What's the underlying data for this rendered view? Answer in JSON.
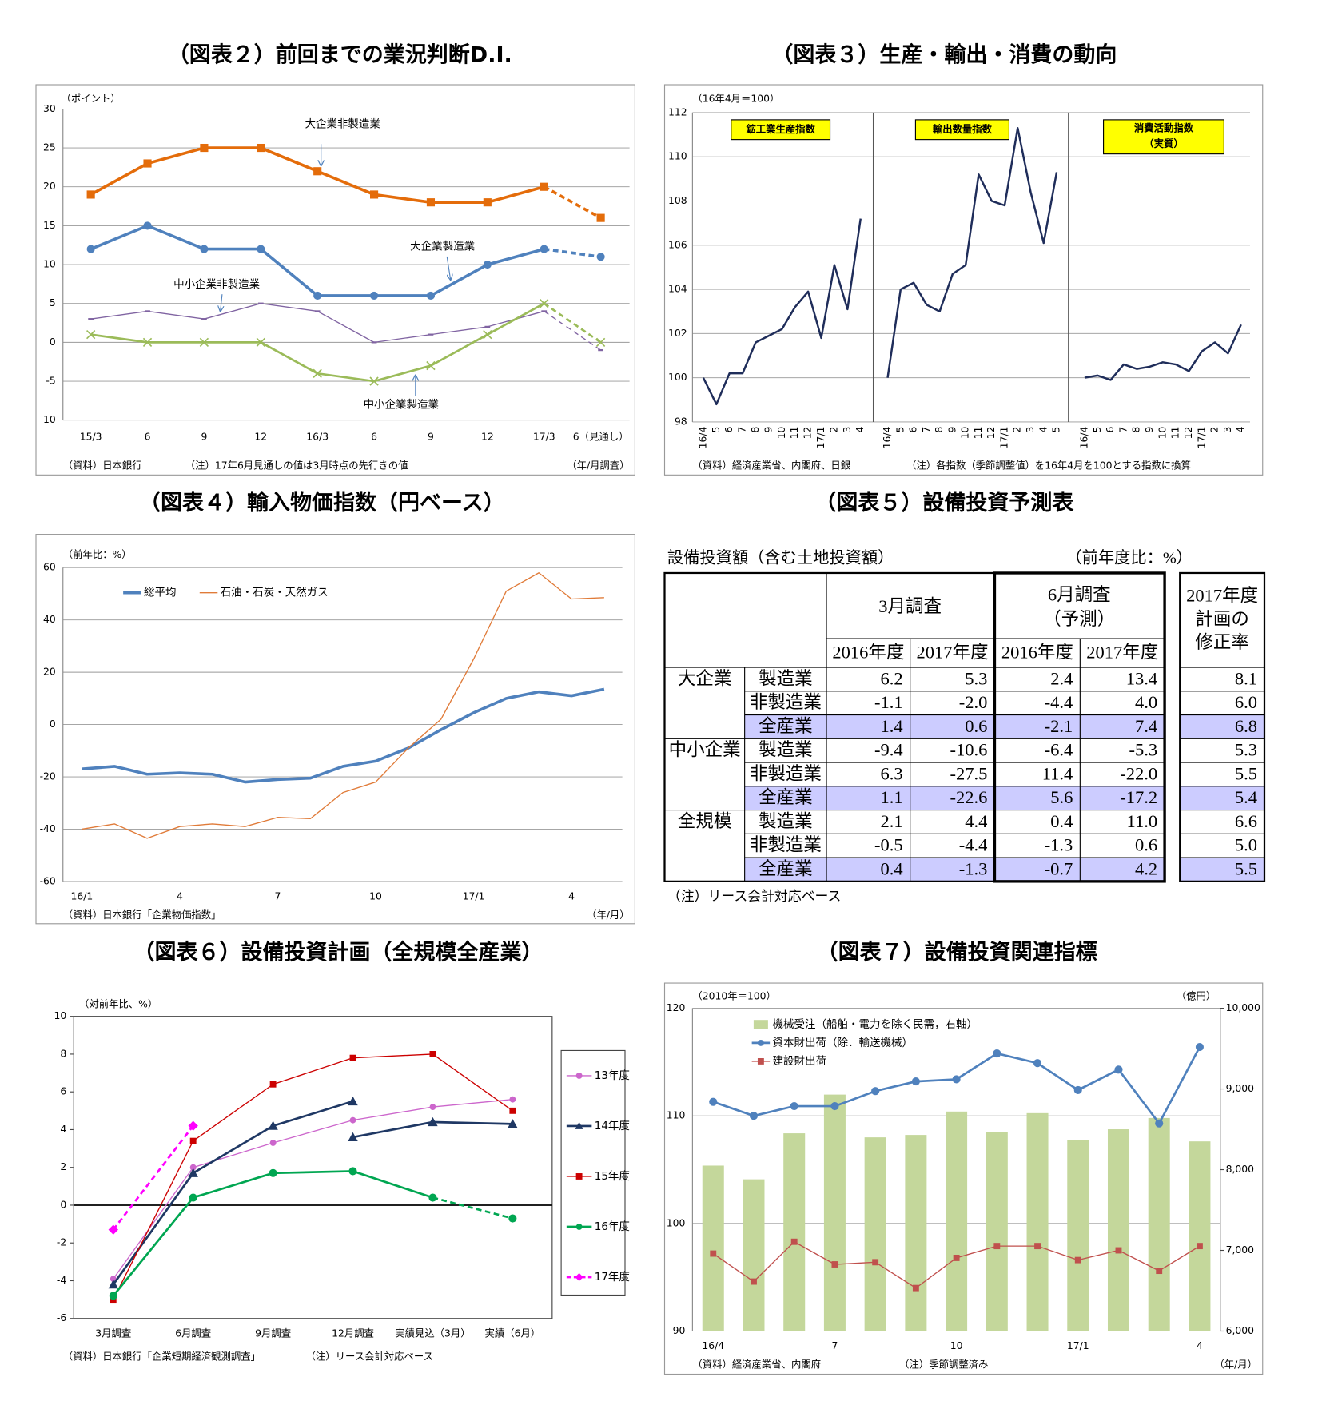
{
  "chart_data": [
    {
      "type": "line",
      "title": "（図表２）前回までの業況判断D.I.",
      "y_label": "（ポイント）",
      "x_label": "（年/月調査）",
      "source": "（資料）日本銀行",
      "note": "（注）17年6月見通しの値は3月時点の先行きの値",
      "categories": [
        "15/3",
        "6",
        "9",
        "12",
        "16/3",
        "6",
        "9",
        "12",
        "17/3",
        "6（見通し）"
      ],
      "ylim": [
        -10,
        30
      ],
      "yticks": [
        -10,
        -5,
        0,
        5,
        10,
        15,
        20,
        25,
        30
      ],
      "grid": true,
      "series": [
        {
          "name": "大企業非製造業",
          "color": "#E46C0A",
          "marker": "square",
          "style": "thick",
          "dashed_last_segment": true,
          "values": [
            19,
            23,
            25,
            25,
            22,
            19,
            18,
            18,
            20,
            16
          ]
        },
        {
          "name": "大企業製造業",
          "color": "#4F81BD",
          "marker": "circle",
          "style": "thick",
          "dashed_last_segment": true,
          "values": [
            12,
            15,
            12,
            12,
            6,
            6,
            6,
            10,
            12,
            11
          ]
        },
        {
          "name": "中小企業非製造業",
          "color": "#8064A2",
          "marker": "dash",
          "style": "thin",
          "dashed_last_segment": true,
          "values": [
            3,
            4,
            3,
            5,
            4,
            0,
            1,
            2,
            4,
            -1
          ]
        },
        {
          "name": "中小企業製造業",
          "color": "#9BBB59",
          "marker": "x",
          "style": "medium",
          "dashed_last_segment": true,
          "values": [
            1,
            0,
            0,
            0,
            -4,
            -5,
            -3,
            1,
            5,
            0
          ]
        }
      ]
    },
    {
      "type": "panel-line",
      "title": "（図表３）生産・輸出・消費の動向",
      "y_label": "（16年4月＝100）",
      "source": "（資料）経済産業省、内閣府、日銀",
      "note": "（注）各指数（季節調整値）を16年4月を100とする指数に換算",
      "ylim": [
        98,
        112
      ],
      "yticks": [
        98,
        100,
        102,
        104,
        106,
        108,
        110,
        112
      ],
      "grid": true,
      "color": "#1F2D5A",
      "label_color": "#FFFF00",
      "panels": [
        {
          "label": "鉱工業生産指数",
          "categories": [
            "16/4",
            "5",
            "6",
            "7",
            "8",
            "9",
            "10",
            "11",
            "12",
            "17/1",
            "2",
            "3",
            "4"
          ],
          "values": [
            100,
            98.8,
            100.2,
            100.2,
            101.6,
            101.9,
            102.2,
            103.2,
            103.9,
            101.8,
            105.1,
            103.1,
            107.2
          ]
        },
        {
          "label": "輸出数量指数",
          "categories": [
            "16/4",
            "5",
            "6",
            "7",
            "8",
            "9",
            "10",
            "11",
            "12",
            "17/1",
            "2",
            "3",
            "4",
            "5"
          ],
          "values": [
            100,
            104,
            104.3,
            103.3,
            103,
            104.7,
            105.1,
            109.2,
            108,
            107.8,
            111.3,
            108.4,
            106.1,
            109.3
          ]
        },
        {
          "label": [
            "消費活動指数",
            "（実質）"
          ],
          "categories": [
            "16/4",
            "5",
            "6",
            "7",
            "8",
            "9",
            "10",
            "11",
            "12",
            "17/1",
            "2",
            "3",
            "4"
          ],
          "values": [
            100,
            100.1,
            99.9,
            100.6,
            100.4,
            100.5,
            100.7,
            100.6,
            100.3,
            101.2,
            101.6,
            101.1,
            102.4
          ]
        }
      ]
    },
    {
      "type": "line",
      "title": "（図表４）輸入物価指数（円ベース）",
      "y_label": "（前年比：%）",
      "x_label": "（年/月）",
      "source": "（資料）日本銀行「企業物価指数」",
      "legend": "top-left",
      "categories": [
        "16/1",
        null,
        null,
        "4",
        null,
        null,
        "7",
        null,
        null,
        "10",
        null,
        null,
        "17/1",
        null,
        null,
        "4",
        null
      ],
      "ylim": [
        -60,
        60
      ],
      "yticks": [
        -60,
        -40,
        -20,
        0,
        20,
        40,
        60
      ],
      "grid": true,
      "series": [
        {
          "name": "総平均",
          "color": "#4F81BD",
          "style": "thick",
          "values": [
            -17,
            -16,
            -19,
            -18.5,
            -19,
            -22,
            -21,
            -20.5,
            -16,
            -14,
            -9,
            -2,
            4.5,
            10,
            12.5,
            11,
            13.5
          ]
        },
        {
          "name": "石油・石炭・天然ガス",
          "color": "#E07B39",
          "style": "thin",
          "values": [
            -40,
            -38,
            -43.5,
            -39,
            -38,
            -39,
            -35.5,
            -36,
            -26,
            -22,
            -9,
            2,
            25,
            51,
            58,
            48,
            48.5
          ]
        }
      ]
    },
    {
      "type": "line",
      "title": "（図表６）設備投資計画（全規模全産業）",
      "y_label": "（対前年比、%）",
      "source": "（資料）日本銀行「企業短期経済観測調査」",
      "note": "（注）リース会計対応ベース",
      "legend": "right",
      "categories": [
        "3月調査",
        "6月調査",
        "9月調査",
        "12月調査",
        "実績見込（3月）",
        "実績（6月）"
      ],
      "ylim": [
        -6,
        10
      ],
      "yticks": [
        -6,
        -4,
        -2,
        0,
        2,
        4,
        6,
        8,
        10
      ],
      "grid": false,
      "zero_line": true,
      "series": [
        {
          "name": "13年度",
          "color": "#CC66CC",
          "marker": "circle",
          "style": "thin",
          "values": [
            -3.9,
            2.0,
            3.3,
            4.5,
            5.2,
            5.6
          ]
        },
        {
          "name": "14年度",
          "color": "#1F3864",
          "marker": "triangle",
          "style": "medium",
          "values": [
            -4.2,
            1.7,
            4.2,
            5.5,
            null,
            null
          ],
          "values_continued": [
            null,
            null,
            null,
            3.6,
            4.4,
            4.3
          ]
        },
        {
          "name": "15年度",
          "color": "#CC0000",
          "marker": "square",
          "style": "thin",
          "values": [
            -5.0,
            3.4,
            6.4,
            7.8,
            8.0,
            5.0
          ]
        },
        {
          "name": "16年度",
          "color": "#00A651",
          "marker": "circle",
          "style": "medium",
          "dashed_last_segment": true,
          "values": [
            -4.8,
            0.4,
            1.7,
            1.8,
            0.4,
            -0.7
          ]
        },
        {
          "name": "17年度",
          "color": "#FF00FF",
          "marker": "diamond",
          "style": "medium",
          "dashed": true,
          "values": [
            -1.3,
            4.2,
            null,
            null,
            null,
            null
          ]
        }
      ]
    },
    {
      "type": "combo",
      "title": "（図表７）設備投資関連指標",
      "y_label": "（2010年＝100）",
      "y2_label": "（億円）",
      "x_label": "（年/月）",
      "source": "（資料）経済産業省、内閣府",
      "note": "（注）季節調整済み",
      "legend": "top-left",
      "categories": [
        "16/4",
        null,
        null,
        "7",
        null,
        null,
        "10",
        null,
        null,
        "17/1",
        null,
        null,
        "4"
      ],
      "ylim": [
        90,
        120
      ],
      "yticks": [
        90,
        100,
        110,
        120
      ],
      "grid": true,
      "y2lim": [
        6000,
        10000
      ],
      "y2ticks": [
        {
          "value": 6000,
          "label": "6,000"
        },
        {
          "value": 7000,
          "label": "7,000"
        },
        {
          "value": 8000,
          "label": "8,000"
        },
        {
          "value": 9000,
          "label": "9,000"
        },
        {
          "value": 10000,
          "label": "10,000"
        }
      ],
      "series": [
        {
          "name": "機械受注（船舶・電力を除く民需，右軸）",
          "kind": "bar",
          "axis": "y2",
          "color": "#C4D79B",
          "values": [
            8050,
            7880,
            8450,
            8930,
            8400,
            8430,
            8720,
            8470,
            8700,
            8370,
            8500,
            8640,
            8350
          ]
        },
        {
          "name": "資本財出荷（除．輸送機械）",
          "color": "#4F81BD",
          "marker": "circle",
          "style": "medium",
          "values": [
            111.3,
            110.0,
            110.9,
            110.9,
            112.3,
            113.2,
            113.4,
            115.8,
            114.9,
            112.4,
            114.3,
            109.3,
            116.4
          ]
        },
        {
          "name": "建設財出荷",
          "color": "#C0504D",
          "marker": "square",
          "style": "thin",
          "values": [
            97.2,
            94.6,
            98.3,
            96.2,
            96.4,
            94.0,
            96.8,
            97.9,
            97.9,
            96.6,
            97.5,
            95.6,
            97.9
          ]
        }
      ]
    }
  ],
  "table": {
    "title": "（図表５）設備投資予測表",
    "caption": "設備投資額（含む土地投資額）",
    "unit": "（前年度比：%）",
    "headers": [
      [
        "3月調査"
      ],
      [
        "6月調査",
        "（予測）"
      ],
      [
        "2017年度",
        "計画の",
        "修正率"
      ]
    ],
    "subheaders": [
      "2016年度",
      "2017年度",
      "2016年度",
      "2017年度"
    ],
    "highlight_color": "#CCCCFF",
    "groups": [
      {
        "name": "大企業",
        "rows": [
          {
            "label": "製造業",
            "cells": [
              "6.2",
              "5.3",
              "2.4",
              "13.4",
              "8.1"
            ]
          },
          {
            "label": "非製造業",
            "cells": [
              "-1.1",
              "-2.0",
              "-4.4",
              "4.0",
              "6.0"
            ]
          },
          {
            "label": "全産業",
            "highlight": true,
            "cells": [
              "1.4",
              "0.6",
              "-2.1",
              "7.4",
              "6.8"
            ]
          }
        ]
      },
      {
        "name": "中小企業",
        "rows": [
          {
            "label": "製造業",
            "cells": [
              "-9.4",
              "-10.6",
              "-6.4",
              "-5.3",
              "5.3"
            ]
          },
          {
            "label": "非製造業",
            "cells": [
              "6.3",
              "-27.5",
              "11.4",
              "-22.0",
              "5.5"
            ]
          },
          {
            "label": "全産業",
            "highlight": true,
            "cells": [
              "1.1",
              "-22.6",
              "5.6",
              "-17.2",
              "5.4"
            ]
          }
        ]
      },
      {
        "name": "全規模",
        "rows": [
          {
            "label": "製造業",
            "cells": [
              "2.1",
              "4.4",
              "0.4",
              "11.0",
              "6.6"
            ]
          },
          {
            "label": "非製造業",
            "cells": [
              "-0.5",
              "-4.4",
              "-1.3",
              "0.6",
              "5.0"
            ]
          },
          {
            "label": "全産業",
            "highlight": true,
            "cells": [
              "0.4",
              "-1.3",
              "-0.7",
              "4.2",
              "5.5"
            ]
          }
        ]
      }
    ],
    "note": "（注）リース会計対応ベース"
  }
}
